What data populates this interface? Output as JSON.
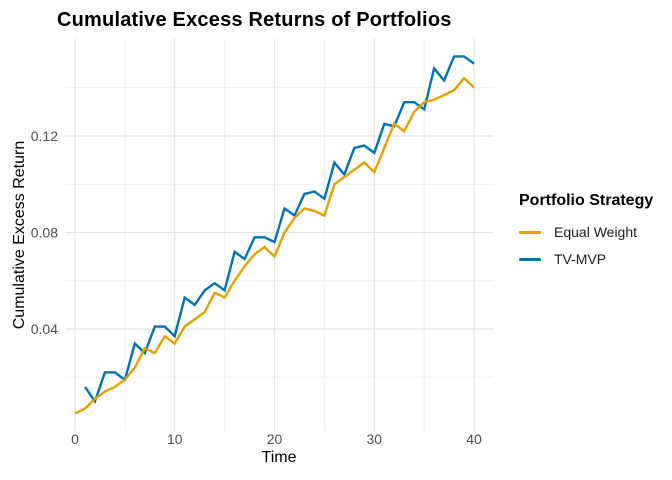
{
  "figure": {
    "title": "Cumulative Excess Returns of Portfolios",
    "background_color": "#FFFFFF"
  },
  "axes": {
    "x_title": "Time",
    "y_title": "Cumulative Excess Return",
    "x_tick_labels": [
      "0",
      "10",
      "20",
      "30",
      "40"
    ],
    "y_tick_labels": [
      "0.04",
      "0.08",
      "0.12"
    ],
    "tick_label_color": "#4D4D4D",
    "axis_title_color": "#000000",
    "grid_major_color": "#E3E3E3",
    "grid_minor_color": "#F0F0F0"
  },
  "legend": {
    "title": "Portfolio Strategy",
    "items": [
      {
        "label": "Equal Weight",
        "color": "#E69F00"
      },
      {
        "label": "TV-MVP",
        "color": "#0072B2"
      }
    ]
  },
  "chart_data": {
    "type": "line",
    "title": "Cumulative Excess Returns of Portfolios",
    "xlabel": "Time",
    "ylabel": "Cumulative Excess Return",
    "xlim": [
      -0.95,
      41.95
    ],
    "ylim": [
      -0.0024,
      0.1604
    ],
    "x_major_gridlines": [
      0,
      10,
      20,
      30,
      40
    ],
    "x_minor_gridlines": [
      5,
      15,
      25,
      35
    ],
    "y_major_gridlines": [
      0.04,
      0.08,
      0.12
    ],
    "y_minor_gridlines": [
      0.02,
      0.06,
      0.1,
      0.14
    ],
    "grid": true,
    "legend_position": "right",
    "series": [
      {
        "name": "Equal Weight",
        "color": "#E69F00",
        "x": [
          0,
          1,
          2,
          3,
          4,
          5,
          6,
          7,
          8,
          9,
          10,
          11,
          12,
          13,
          14,
          15,
          16,
          17,
          18,
          19,
          20,
          21,
          22,
          23,
          24,
          25,
          26,
          27,
          28,
          29,
          30,
          31,
          32,
          33,
          34,
          35,
          36,
          37,
          38,
          39,
          40
        ],
        "values": [
          0.005,
          0.007,
          0.011,
          0.014,
          0.016,
          0.019,
          0.024,
          0.032,
          0.03,
          0.037,
          0.034,
          0.041,
          0.044,
          0.047,
          0.055,
          0.053,
          0.06,
          0.066,
          0.071,
          0.074,
          0.07,
          0.08,
          0.086,
          0.09,
          0.089,
          0.087,
          0.1,
          0.103,
          0.106,
          0.109,
          0.105,
          0.115,
          0.125,
          0.122,
          0.13,
          0.134,
          0.135,
          0.137,
          0.139,
          0.144,
          0.14
        ]
      },
      {
        "name": "TV-MVP",
        "color": "#0072B2",
        "x": [
          1,
          2,
          3,
          4,
          5,
          6,
          7,
          8,
          9,
          10,
          11,
          12,
          13,
          14,
          15,
          16,
          17,
          18,
          19,
          20,
          21,
          22,
          23,
          24,
          25,
          26,
          27,
          28,
          29,
          30,
          31,
          32,
          33,
          34,
          35,
          36,
          37,
          38,
          39,
          40
        ],
        "values": [
          0.016,
          0.01,
          0.022,
          0.022,
          0.019,
          0.034,
          0.03,
          0.041,
          0.041,
          0.037,
          0.053,
          0.05,
          0.056,
          0.059,
          0.056,
          0.072,
          0.069,
          0.078,
          0.078,
          0.076,
          0.09,
          0.087,
          0.096,
          0.097,
          0.094,
          0.109,
          0.104,
          0.115,
          0.116,
          0.113,
          0.125,
          0.124,
          0.134,
          0.134,
          0.131,
          0.148,
          0.143,
          0.153,
          0.153,
          0.15
        ]
      }
    ]
  }
}
